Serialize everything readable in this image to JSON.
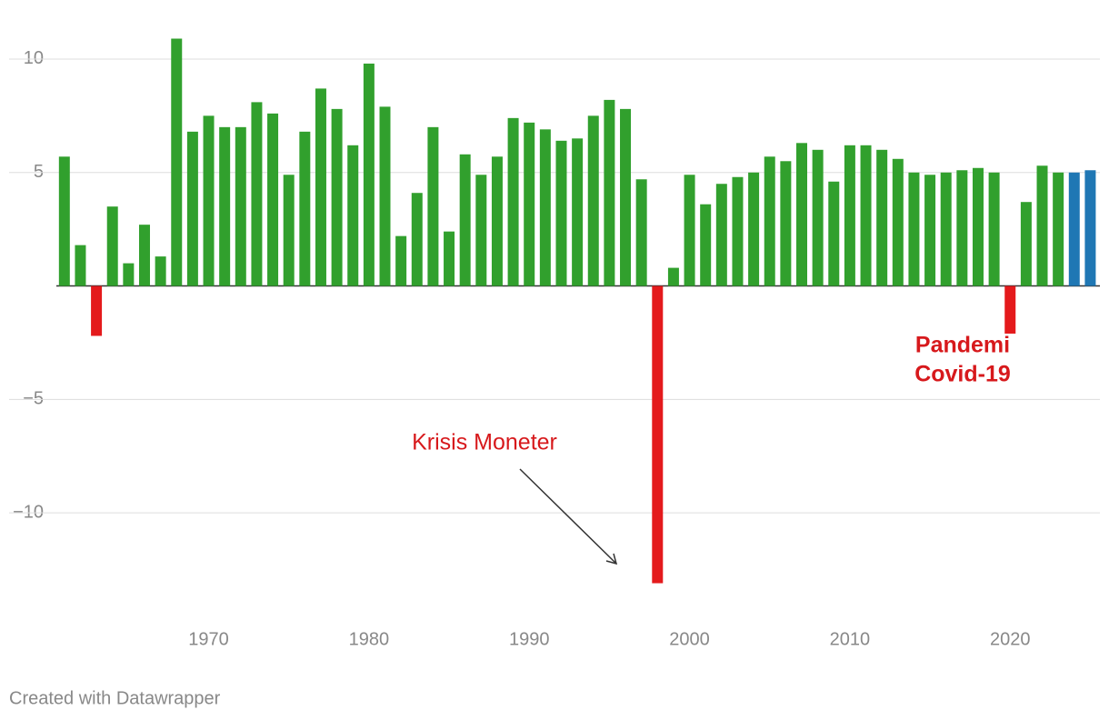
{
  "chart_data": {
    "type": "bar",
    "x": [
      1961,
      1962,
      1963,
      1964,
      1965,
      1966,
      1967,
      1968,
      1969,
      1970,
      1971,
      1972,
      1973,
      1974,
      1975,
      1976,
      1977,
      1978,
      1979,
      1980,
      1981,
      1982,
      1983,
      1984,
      1985,
      1986,
      1987,
      1988,
      1989,
      1990,
      1991,
      1992,
      1993,
      1994,
      1995,
      1996,
      1997,
      1998,
      1999,
      2000,
      2001,
      2002,
      2003,
      2004,
      2005,
      2006,
      2007,
      2008,
      2009,
      2010,
      2011,
      2012,
      2013,
      2014,
      2015,
      2016,
      2017,
      2018,
      2019,
      2020,
      2021,
      2022,
      2023,
      2024,
      2025
    ],
    "values": [
      5.7,
      1.8,
      -2.2,
      3.5,
      1.0,
      2.7,
      1.3,
      10.9,
      6.8,
      7.5,
      7.0,
      7.0,
      8.1,
      7.6,
      4.9,
      6.8,
      8.7,
      7.8,
      6.2,
      9.8,
      7.9,
      2.2,
      4.1,
      7.0,
      2.4,
      5.8,
      4.9,
      5.7,
      7.4,
      7.2,
      6.9,
      6.4,
      6.5,
      7.5,
      8.2,
      7.8,
      4.7,
      -13.1,
      0.8,
      4.9,
      3.6,
      4.5,
      4.8,
      5.0,
      5.7,
      5.5,
      6.3,
      6.0,
      4.6,
      6.2,
      6.2,
      6.0,
      5.6,
      5.0,
      4.9,
      5.0,
      5.1,
      5.2,
      5.0,
      -2.1,
      3.7,
      5.3,
      5.0,
      5.0,
      5.1
    ],
    "colors": [
      "#31a02d",
      "#31a02d",
      "#e41a1c",
      "#31a02d",
      "#31a02d",
      "#31a02d",
      "#31a02d",
      "#31a02d",
      "#31a02d",
      "#31a02d",
      "#31a02d",
      "#31a02d",
      "#31a02d",
      "#31a02d",
      "#31a02d",
      "#31a02d",
      "#31a02d",
      "#31a02d",
      "#31a02d",
      "#31a02d",
      "#31a02d",
      "#31a02d",
      "#31a02d",
      "#31a02d",
      "#31a02d",
      "#31a02d",
      "#31a02d",
      "#31a02d",
      "#31a02d",
      "#31a02d",
      "#31a02d",
      "#31a02d",
      "#31a02d",
      "#31a02d",
      "#31a02d",
      "#31a02d",
      "#31a02d",
      "#e41a1c",
      "#31a02d",
      "#31a02d",
      "#31a02d",
      "#31a02d",
      "#31a02d",
      "#31a02d",
      "#31a02d",
      "#31a02d",
      "#31a02d",
      "#31a02d",
      "#31a02d",
      "#31a02d",
      "#31a02d",
      "#31a02d",
      "#31a02d",
      "#31a02d",
      "#31a02d",
      "#31a02d",
      "#31a02d",
      "#31a02d",
      "#31a02d",
      "#e41a1c",
      "#31a02d",
      "#31a02d",
      "#31a02d",
      "#1f77b4",
      "#1f77b4"
    ],
    "xlim": [
      1960.5,
      2025.6
    ],
    "xticks": [
      1970,
      1980,
      1990,
      2000,
      2010,
      2020
    ],
    "ylim": [
      -14,
      11
    ],
    "yticks": [
      {
        "value": -10,
        "label": "−10"
      },
      {
        "value": -5,
        "label": "−5"
      },
      5,
      10
    ],
    "grid": true,
    "annotations": [
      "Krisis Moneter",
      "Pandemi",
      "Covid-19"
    ],
    "footer": "Created with Datawrapper"
  }
}
